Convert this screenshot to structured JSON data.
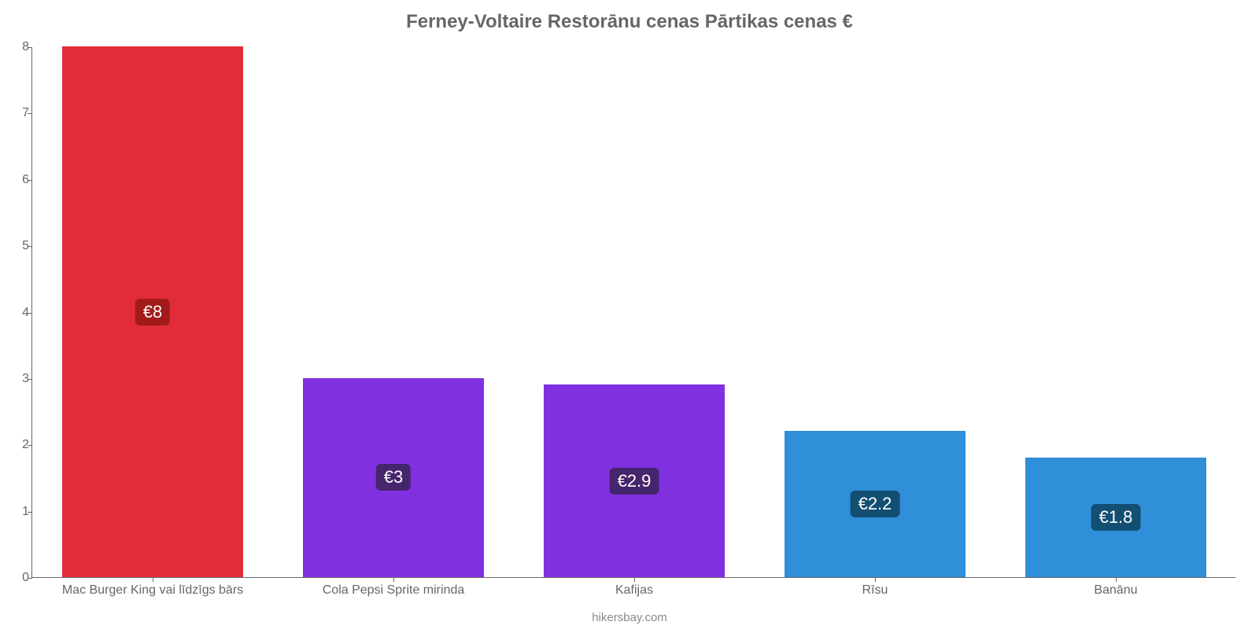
{
  "chart": {
    "type": "bar",
    "title": "Ferney-Voltaire Restorānu cenas Pārtikas cenas €",
    "title_fontsize": 24,
    "title_color": "#666666",
    "background_color": "#ffffff",
    "axis_line_color": "#666666",
    "tick_label_color": "#666666",
    "tick_label_fontsize": 16,
    "category_label_color": "#666666",
    "category_label_fontsize": 16,
    "ylim": [
      0,
      8
    ],
    "ytick_step": 1,
    "categories": [
      "Mac Burger King vai līdzīgs bārs",
      "Cola Pepsi Sprite mirinda",
      "Kafijas",
      "Rīsu",
      "Banānu"
    ],
    "values": [
      8,
      3,
      2.9,
      2.2,
      1.8
    ],
    "value_labels": [
      "€8",
      "€3",
      "€2.9",
      "€2.2",
      "€1.8"
    ],
    "bar_colors": [
      "#e12d39",
      "#8130e0",
      "#8130e0",
      "#2f8fd8",
      "#2f8fd8"
    ],
    "bar_label_bg": [
      "#a11b1b",
      "#45256b",
      "#45256b",
      "#134e73",
      "#134e73"
    ],
    "bar_label_color": "#ffffff",
    "bar_label_fontsize": 22,
    "bar_width_ratio": 0.75,
    "attribution": "hikersbay.com",
    "attribution_fontsize": 15,
    "attribution_color": "#888888",
    "y_tick_labels": [
      "0",
      "1",
      "2",
      "3",
      "4",
      "5",
      "6",
      "7",
      "8"
    ]
  }
}
